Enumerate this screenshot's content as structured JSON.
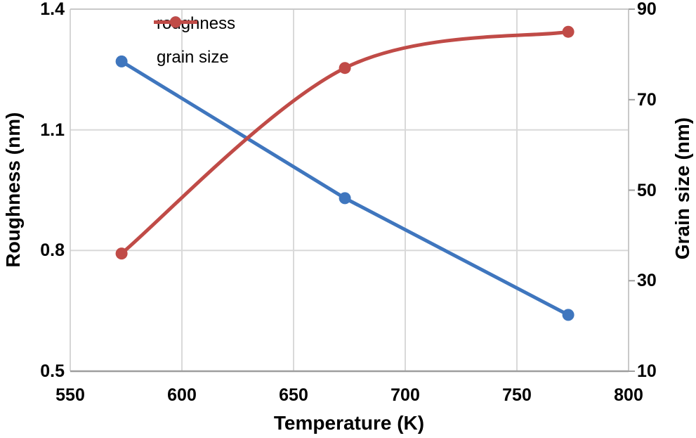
{
  "chart_data": {
    "type": "line",
    "title": "",
    "xlabel": "Temperature (K)",
    "ylabel_left": "Roughness (nm)",
    "ylabel_right": "Grain size (nm)",
    "x": [
      573,
      673,
      773
    ],
    "series": [
      {
        "name": "roughness",
        "slug": "roughness",
        "axis": "left",
        "color": "#3F76BE",
        "values": [
          1.27,
          0.93,
          0.64
        ],
        "smooth": false
      },
      {
        "name": "grain size",
        "slug": "grain-size",
        "axis": "right",
        "color": "#C04B47",
        "values": [
          36,
          77,
          85
        ],
        "smooth": true
      }
    ],
    "x_axis": {
      "min": 550,
      "max": 800,
      "ticks": [
        550,
        600,
        650,
        700,
        750,
        800
      ],
      "tick_labels": [
        "550",
        "600",
        "650",
        "700",
        "750",
        "800"
      ]
    },
    "left_axis": {
      "min": 0.5,
      "max": 1.4,
      "ticks": [
        0.5,
        0.8,
        1.1,
        1.4
      ],
      "tick_labels": [
        "0.5",
        "0.8",
        "1.1",
        "1.4"
      ]
    },
    "right_axis": {
      "min": 10,
      "max": 90,
      "ticks": [
        10,
        30,
        50,
        70,
        90
      ],
      "tick_labels": [
        "10",
        "30",
        "50",
        "70",
        "90"
      ]
    },
    "grid": true,
    "legend_position": "top-center-inside",
    "colors": {
      "gridline": "#D9D9D9",
      "plot_border": "#C9C9C9",
      "axis_line": "#9E9E9E",
      "background": "#FFFFFF",
      "text": "#000000"
    }
  }
}
